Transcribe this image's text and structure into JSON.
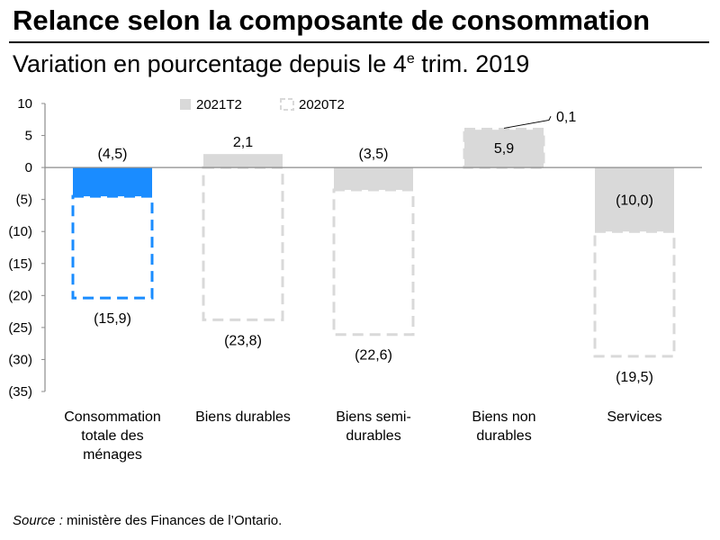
{
  "header": {
    "title": "Relance selon la composante de consommation",
    "subtitle_main": "Variation en pourcentage depuis le 4",
    "subtitle_sup": "e",
    "subtitle_tail": " trim. 2019"
  },
  "source": {
    "label": "Source :",
    "text": " ministère des Finances de l’Ontario."
  },
  "colors": {
    "highlight_fill": "#1a8cff",
    "neutral_fill": "#d9d9d9",
    "highlight_dash": "#1a8cff",
    "neutral_dash": "#d9d9d9",
    "axis": "#8c8c8c"
  },
  "chart_data": {
    "type": "bar",
    "categories": [
      [
        "Consommation",
        "totale des",
        "ménages"
      ],
      [
        "Biens durables"
      ],
      [
        "Biens semi-",
        "durables"
      ],
      [
        "Biens non",
        "durables"
      ],
      [
        "Services"
      ]
    ],
    "series": [
      {
        "name": "2021T2",
        "style": "solid",
        "values": [
          -4.5,
          2.1,
          -3.5,
          5.9,
          -10.0
        ],
        "labels": [
          "(4,5)",
          "2,1",
          "(3,5)",
          "5,9",
          "(10,0)"
        ]
      },
      {
        "name": "2020T2",
        "style": "dashed-outline",
        "values": [
          -20.4,
          -23.8,
          -26.1,
          6.0,
          -29.5
        ],
        "labels": [
          "(15,9)",
          "(23,8)",
          "(22,6)",
          "0,1",
          "(19,5)"
        ]
      }
    ],
    "highlight_category_index": 0,
    "ylim": [
      -35,
      10
    ],
    "yticks": [
      10,
      5,
      0,
      -5,
      -10,
      -15,
      -20,
      -25,
      -30,
      -35
    ],
    "ytick_labels": [
      "10",
      "5",
      "0",
      "(5)",
      "(10)",
      "(15)",
      "(20)",
      "(25)",
      "(30)",
      "(35)"
    ],
    "grid": false,
    "legend_position": "top"
  }
}
